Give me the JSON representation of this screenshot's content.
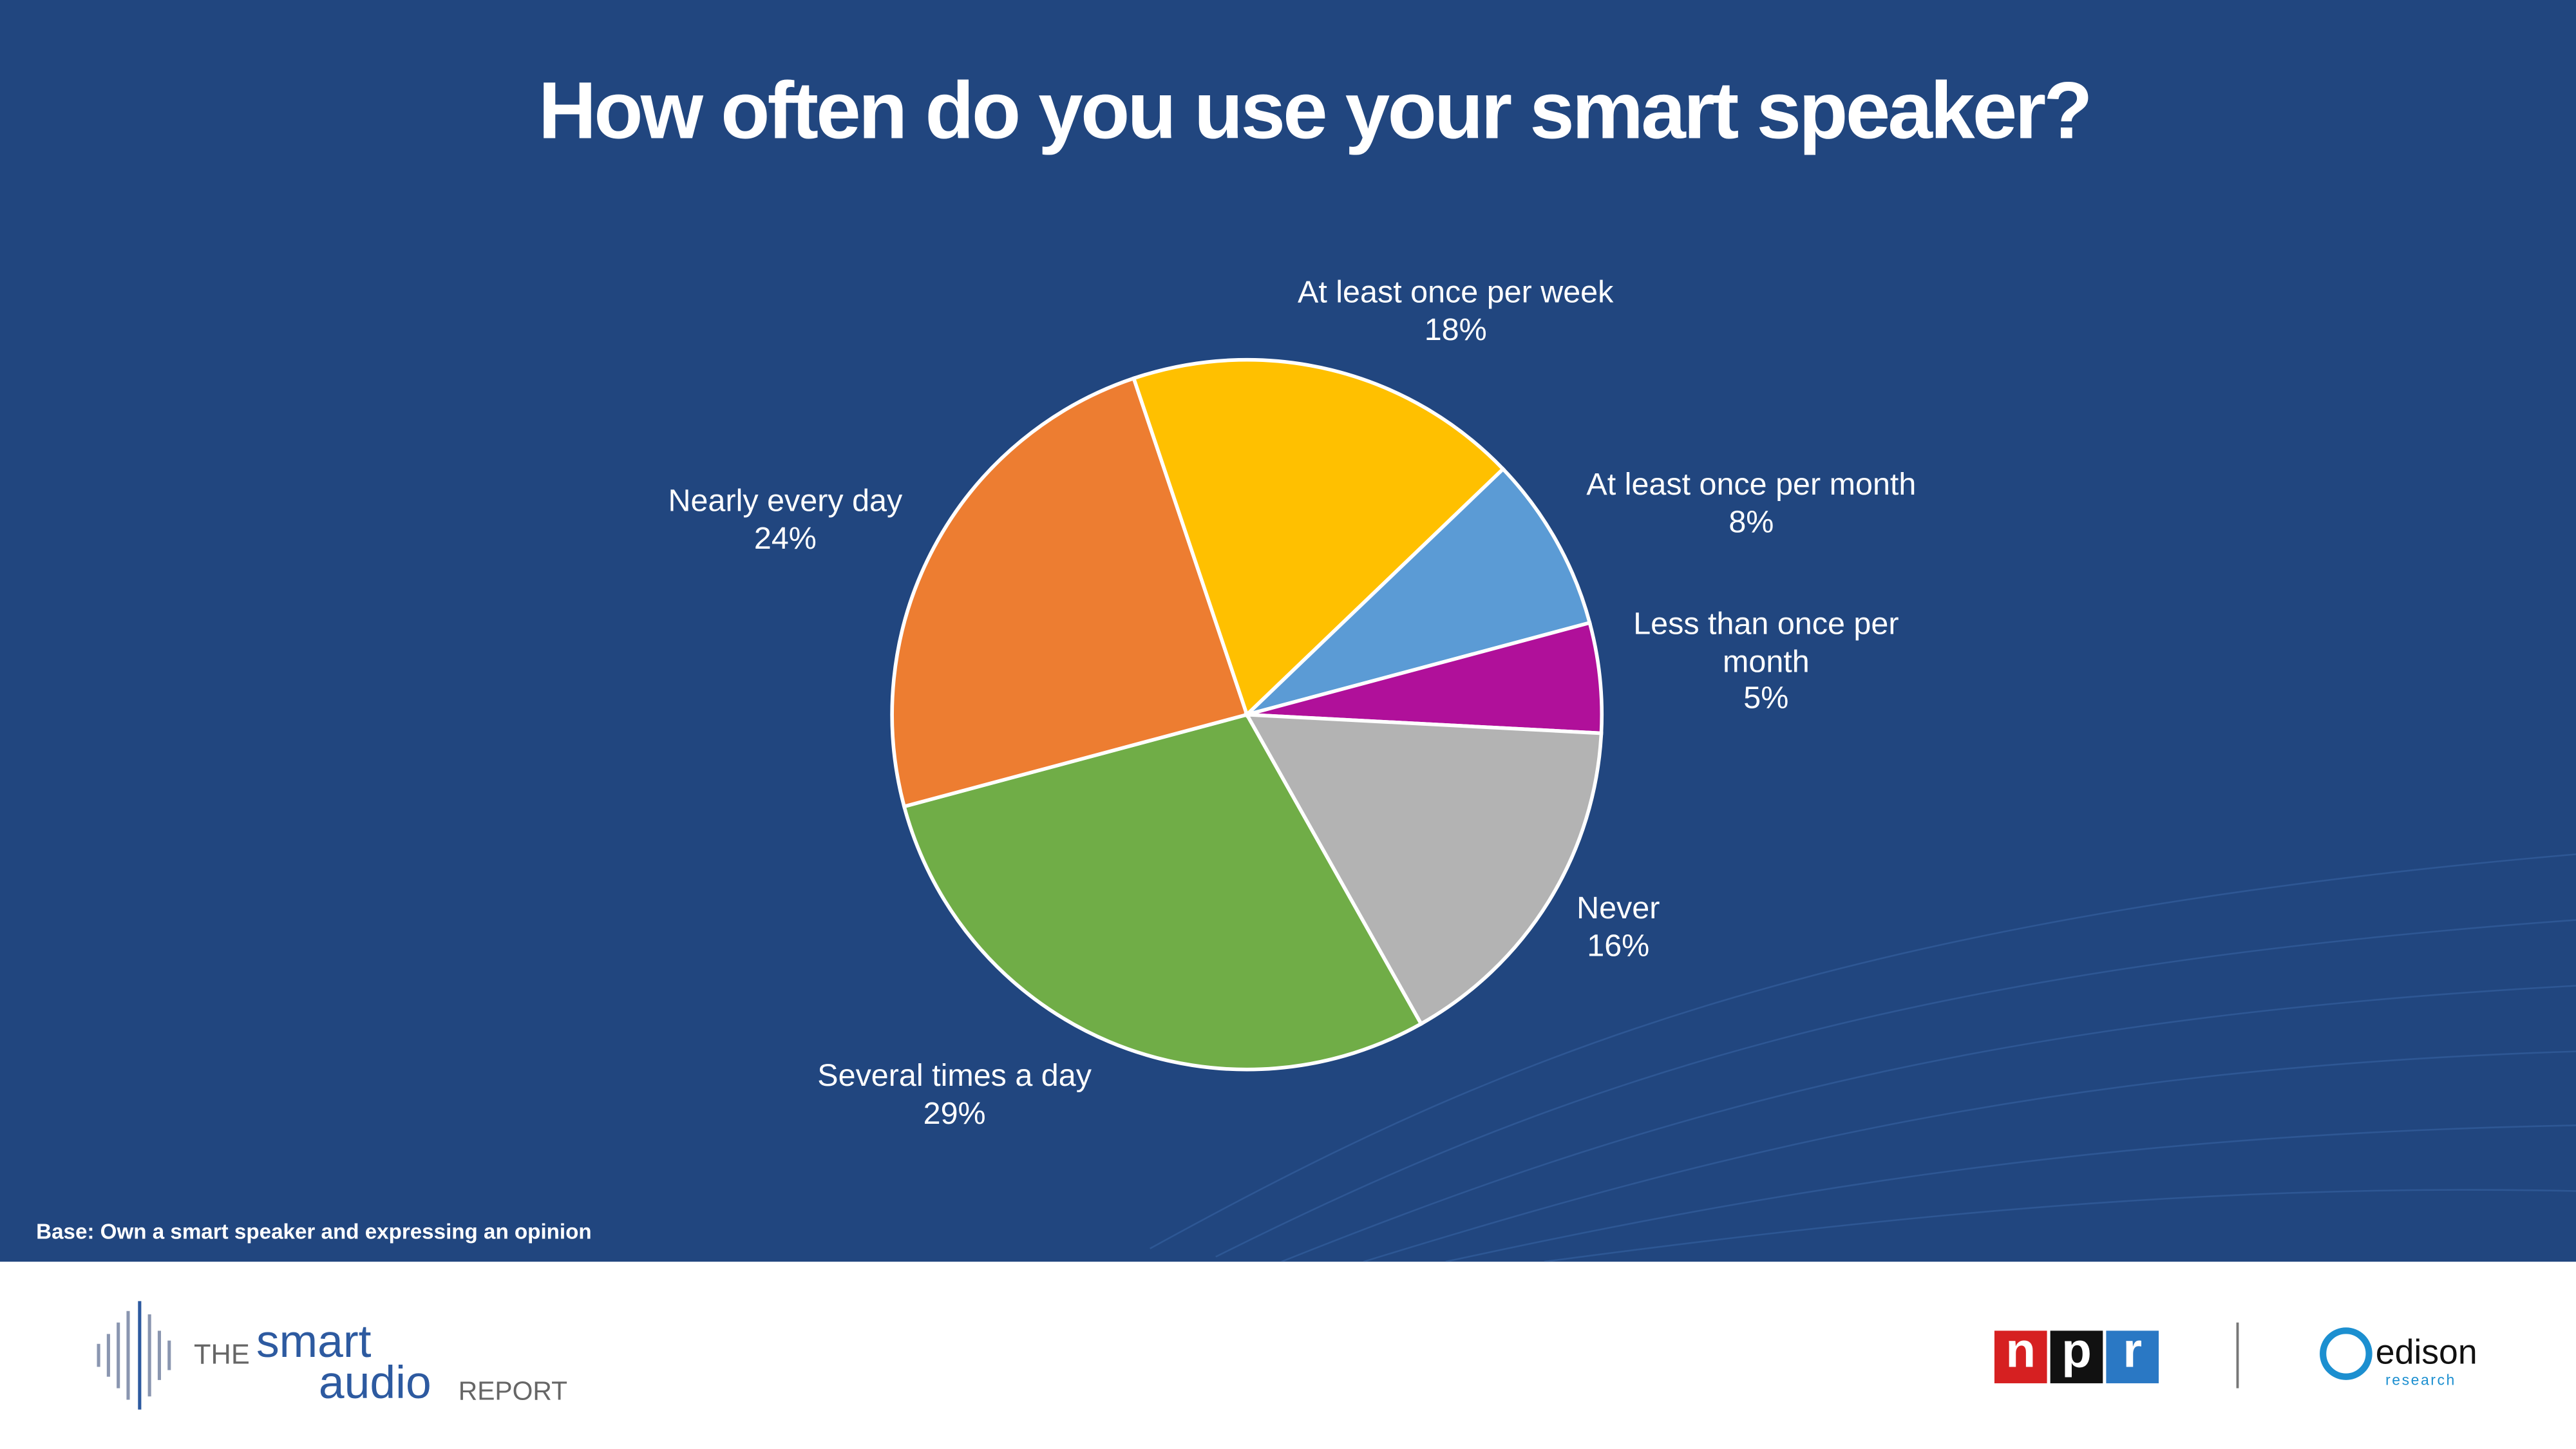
{
  "chart_data": {
    "type": "pie",
    "title": "How often do you use your smart speaker?",
    "categories": [
      "Several times a day",
      "Nearly every day",
      "At least once per week",
      "At least once per month",
      "Less than once per month",
      "Never"
    ],
    "values": [
      29,
      24,
      18,
      8,
      5,
      16
    ],
    "value_labels": [
      "29%",
      "24%",
      "18%",
      "8%",
      "5%",
      "16%"
    ],
    "colors": [
      "#70ad47",
      "#ed7d31",
      "#ffc000",
      "#5b9bd5",
      "#b0109a",
      "#b3b3b3"
    ],
    "note": "Base: Own a smart speaker and expressing an opinion"
  },
  "footer": {
    "the": "THE",
    "smart": "smart",
    "audio": "audio",
    "report": "REPORT",
    "npr": [
      "n",
      "p",
      "r"
    ],
    "edison": "edison",
    "research": "research"
  }
}
